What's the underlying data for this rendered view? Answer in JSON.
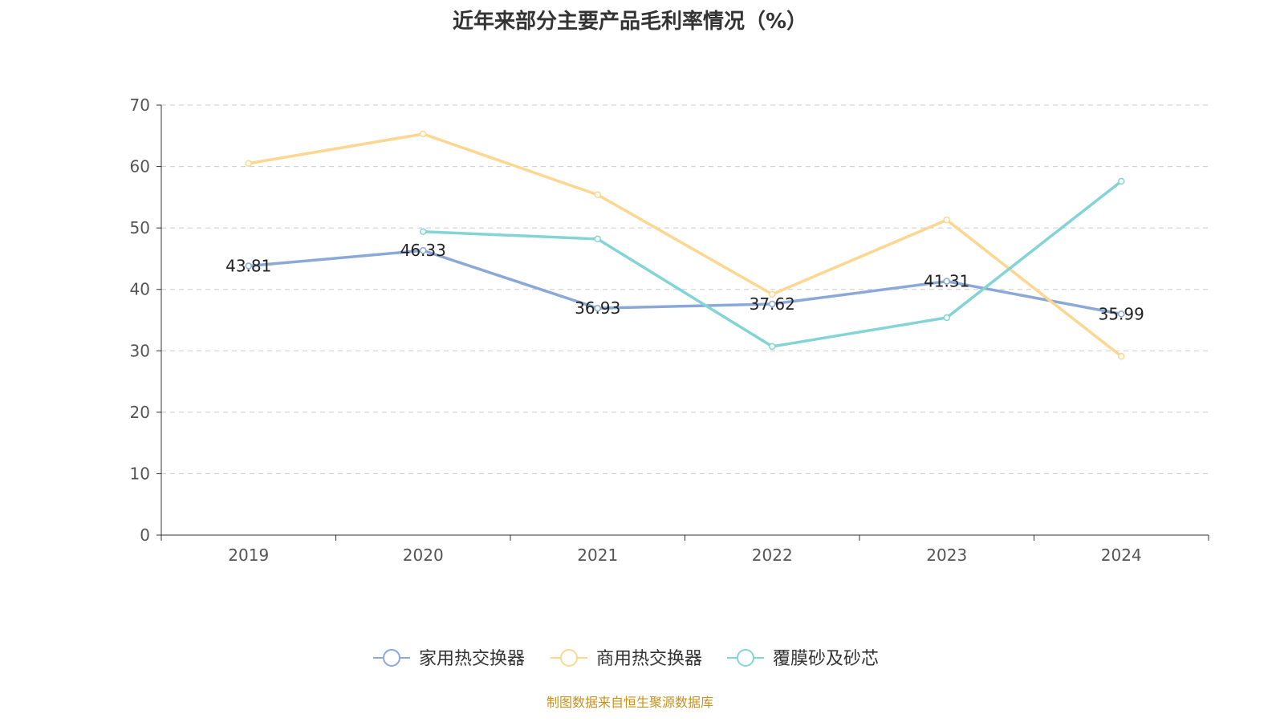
{
  "chart_data": {
    "type": "line",
    "title": "近年来部分主要产品毛利率情况（%）",
    "categories": [
      "2019",
      "2020",
      "2021",
      "2022",
      "2023",
      "2024"
    ],
    "ylim": [
      0,
      70
    ],
    "yticks": [
      0,
      10,
      20,
      30,
      40,
      50,
      60,
      70
    ],
    "grid": true,
    "legend_placement": "bottom",
    "series": [
      {
        "name": "家用热交换器",
        "color": "#8aa8d8",
        "values": [
          43.81,
          46.33,
          36.93,
          37.62,
          41.31,
          35.99
        ],
        "labels": [
          "43.81",
          "46.33",
          "36.93",
          "37.62",
          "41.31",
          "35.99"
        ]
      },
      {
        "name": "商用热交换器",
        "color": "#fdd690",
        "values": [
          60.5,
          65.3,
          55.4,
          39.2,
          51.3,
          29.1
        ]
      },
      {
        "name": "覆膜砂及砂芯",
        "color": "#82d4d6",
        "values": [
          null,
          49.4,
          48.2,
          30.7,
          35.4,
          57.6
        ]
      }
    ]
  },
  "source": "制图数据来自恒生聚源数据库"
}
